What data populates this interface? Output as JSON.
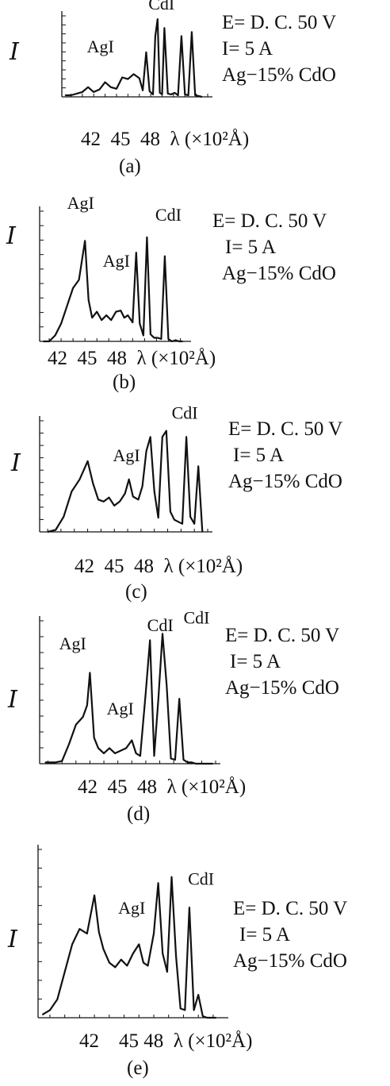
{
  "conditions": {
    "voltage": "E= D. C. 50 V",
    "current": "I= 5 A",
    "material": "Ag−15% CdO"
  },
  "y_label": "I",
  "x_ticks": [
    "42",
    "45",
    "48"
  ],
  "x_axis_label": "λ (×10²Å)",
  "chart_data": [
    {
      "id": "a",
      "type": "line",
      "caption": "(a)",
      "x": [
        39.5,
        40.0,
        41.0,
        41.5,
        42.0,
        42.5,
        43.0,
        43.5,
        44.0,
        44.5,
        45.0,
        45.5,
        46.0,
        46.3,
        46.6,
        46.9,
        47.2,
        47.4,
        47.6,
        47.8,
        48.0,
        48.2,
        48.5,
        48.8,
        49.1,
        49.4,
        49.7,
        50.0,
        50.3,
        50.6,
        50.9,
        51.2,
        51.5
      ],
      "y": [
        2,
        2,
        6,
        12,
        6,
        9,
        18,
        12,
        10,
        24,
        22,
        28,
        23,
        8,
        55,
        7,
        3,
        75,
        96,
        5,
        3,
        85,
        4,
        3,
        5,
        2,
        75,
        3,
        2,
        80,
        2,
        1,
        0
      ],
      "annotations": [
        {
          "text": "AgI",
          "x": 41.4,
          "y": 55
        },
        {
          "text": "CdI",
          "x": 46.8,
          "y": 108
        }
      ],
      "xlim": [
        39.2,
        52.0
      ],
      "ylim": [
        0,
        100
      ],
      "grid": false
    },
    {
      "id": "b",
      "type": "line",
      "caption": "(b)",
      "x": [
        38.5,
        39.0,
        39.5,
        40.0,
        40.5,
        41.0,
        41.5,
        42.0,
        42.3,
        42.6,
        43.0,
        43.4,
        43.8,
        44.2,
        44.6,
        45.0,
        45.3,
        45.6,
        46.0,
        46.3,
        46.6,
        46.9,
        47.2,
        47.5,
        47.8,
        48.1,
        48.4,
        48.7,
        49.0,
        49.3,
        49.6,
        49.9,
        50.2
      ],
      "y": [
        0,
        0,
        5,
        15,
        30,
        45,
        52,
        85,
        35,
        20,
        25,
        18,
        22,
        18,
        25,
        26,
        20,
        22,
        16,
        75,
        15,
        5,
        88,
        6,
        3,
        3,
        2,
        72,
        2,
        0,
        1,
        0,
        0
      ],
      "annotations": [
        {
          "text": "AgI",
          "x": 40.5,
          "y": 112
        },
        {
          "text": "AgI",
          "x": 43.5,
          "y": 63
        },
        {
          "text": "CdI",
          "x": 47.9,
          "y": 102
        }
      ],
      "xlim": [
        38.2,
        50.5
      ],
      "ylim": [
        0,
        110
      ],
      "grid": false
    },
    {
      "id": "c",
      "type": "line",
      "caption": "(c)",
      "x": [
        39.0,
        39.6,
        40.2,
        40.8,
        41.4,
        42.0,
        42.4,
        42.8,
        43.2,
        43.6,
        44.0,
        44.4,
        44.8,
        45.1,
        45.4,
        45.8,
        46.1,
        46.4,
        46.7,
        47.0,
        47.3,
        47.6,
        47.9,
        48.2,
        48.5,
        48.8,
        49.1,
        49.4,
        49.7,
        50.0,
        50.3,
        50.6
      ],
      "y": [
        0,
        2,
        15,
        40,
        52,
        70,
        48,
        32,
        30,
        34,
        26,
        30,
        38,
        52,
        35,
        32,
        45,
        80,
        94,
        40,
        14,
        94,
        100,
        20,
        12,
        10,
        8,
        94,
        15,
        8,
        65,
        0
      ],
      "annotations": [
        {
          "text": "AgI",
          "x": 43.9,
          "y": 70
        },
        {
          "text": "CdI",
          "x": 48.3,
          "y": 112
        }
      ],
      "xlim": [
        38.4,
        51.0
      ],
      "ylim": [
        0,
        110
      ],
      "grid": false
    },
    {
      "id": "d",
      "type": "line",
      "caption": "(d)",
      "x": [
        38.8,
        39.5,
        40.0,
        40.5,
        41.0,
        41.5,
        41.8,
        42.0,
        42.3,
        42.6,
        43.0,
        43.4,
        43.8,
        44.2,
        44.6,
        45.0,
        45.3,
        45.6,
        46.0,
        46.3,
        46.6,
        46.9,
        47.2,
        47.5,
        47.8,
        48.1,
        48.4,
        48.7,
        49.0,
        49.3,
        49.6,
        49.9,
        50.2,
        50.8
      ],
      "y": [
        1,
        1,
        2,
        15,
        30,
        36,
        45,
        70,
        20,
        12,
        8,
        12,
        8,
        10,
        12,
        18,
        8,
        6,
        55,
        95,
        6,
        50,
        100,
        60,
        4,
        3,
        50,
        3,
        1,
        1,
        0,
        0,
        0,
        0
      ],
      "annotations": [
        {
          "text": "AgI",
          "x": 39.8,
          "y": 88
        },
        {
          "text": "AgI",
          "x": 43.2,
          "y": 38
        },
        {
          "text": "CdI",
          "x": 46.1,
          "y": 102
        },
        {
          "text": "CdI",
          "x": 48.7,
          "y": 108
        }
      ],
      "xlim": [
        38.4,
        51.0
      ],
      "ylim": [
        0,
        110
      ],
      "grid": false
    },
    {
      "id": "e",
      "type": "line",
      "caption": "(e)",
      "x": [
        38.5,
        39.0,
        39.5,
        40.0,
        40.5,
        41.0,
        41.5,
        42.0,
        42.3,
        42.6,
        43.0,
        43.4,
        43.8,
        44.2,
        44.6,
        45.0,
        45.3,
        45.6,
        46.0,
        46.3,
        46.6,
        46.9,
        47.2,
        47.5,
        47.8,
        48.1,
        48.4,
        48.7,
        49.0,
        49.3,
        49.6,
        49.9,
        50.2
      ],
      "y": [
        2,
        5,
        12,
        30,
        48,
        58,
        55,
        80,
        56,
        45,
        36,
        33,
        38,
        34,
        42,
        48,
        36,
        34,
        55,
        88,
        42,
        30,
        92,
        40,
        6,
        5,
        72,
        5,
        15,
        1,
        0,
        0,
        0
      ],
      "annotations": [
        {
          "text": "AgI",
          "x": 43.6,
          "y": 68
        },
        {
          "text": "CdI",
          "x": 48.3,
          "y": 87
        }
      ],
      "xlim": [
        38.2,
        50.7
      ],
      "ylim": [
        0,
        110
      ],
      "grid": false
    }
  ]
}
